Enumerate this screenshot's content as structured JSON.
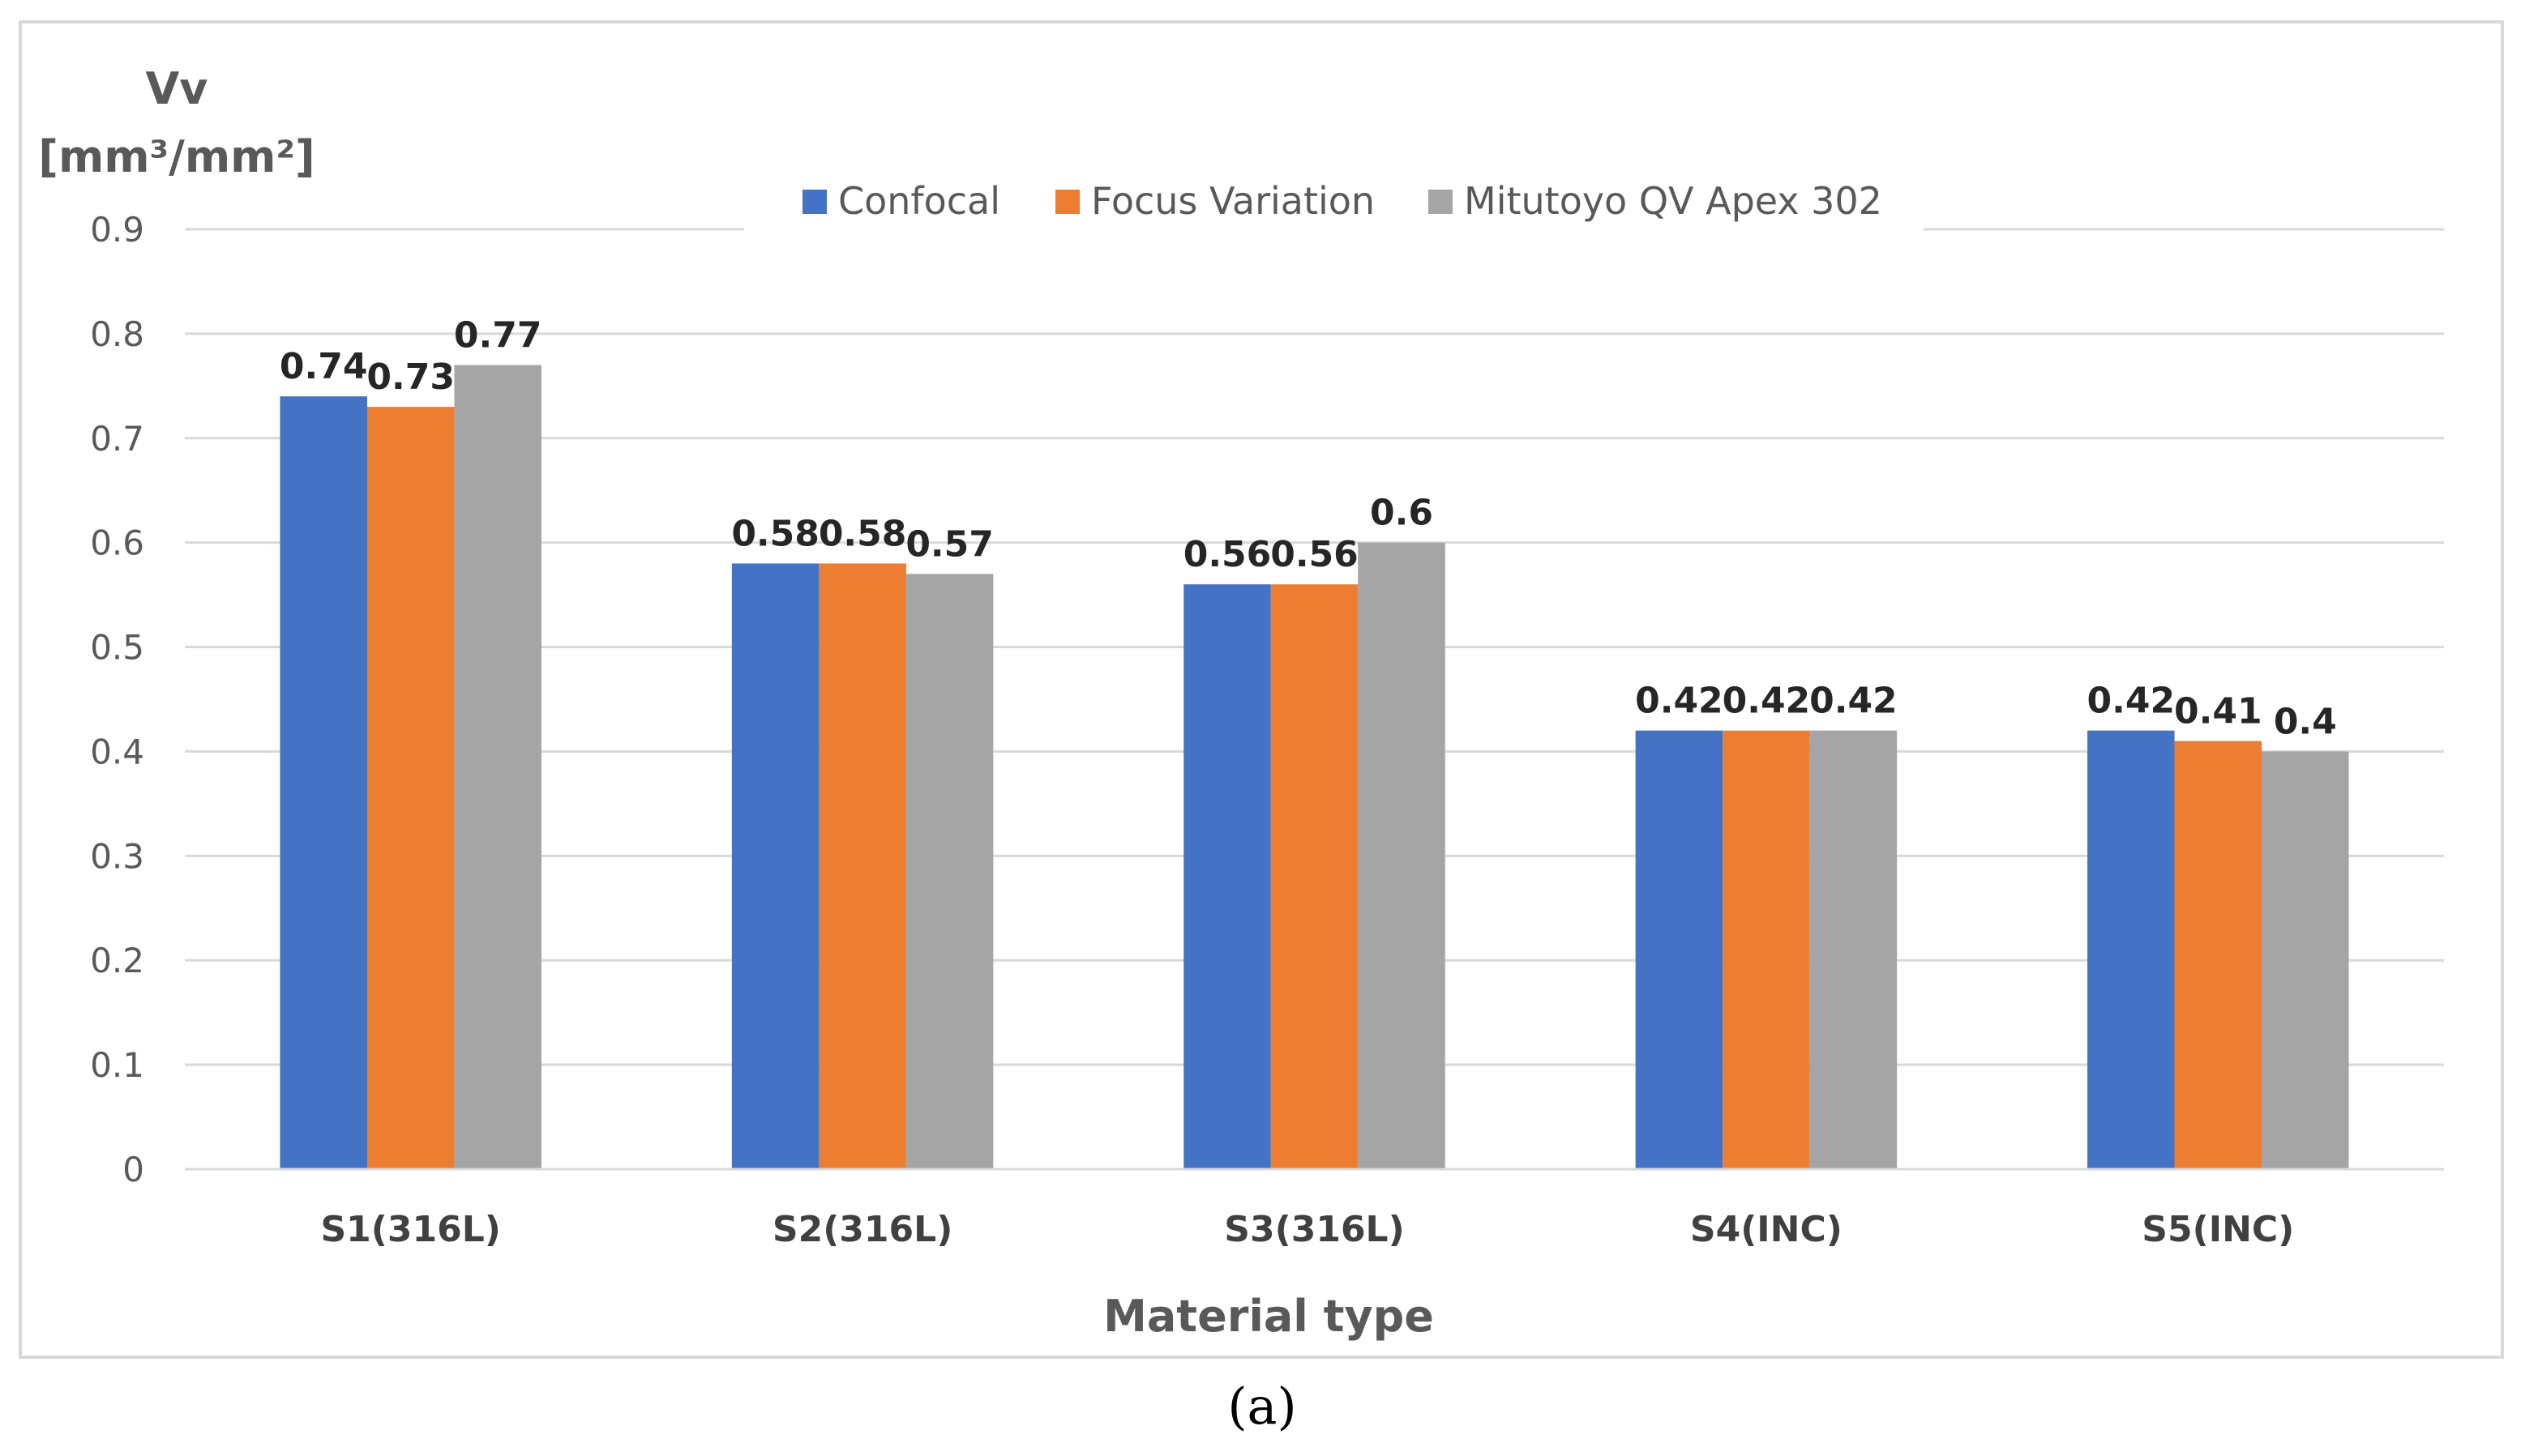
{
  "chart_data": {
    "type": "bar",
    "categories": [
      "S1(316L)",
      "S2(316L)",
      "S3(316L)",
      "S4(INC)",
      "S5(INC)"
    ],
    "series": [
      {
        "name": "Confocal",
        "color": "#4472C4",
        "values": [
          0.74,
          0.58,
          0.56,
          0.42,
          0.42
        ]
      },
      {
        "name": "Focus Variation",
        "color": "#ED7D31",
        "values": [
          0.73,
          0.58,
          0.56,
          0.42,
          0.41
        ]
      },
      {
        "name": "Mitutoyo QV Apex 302",
        "color": "#A5A5A5",
        "values": [
          0.77,
          0.57,
          0.6,
          0.42,
          0.4
        ]
      }
    ],
    "data_labels": [
      [
        "0.74",
        "0.58",
        "0.56",
        "0.42",
        "0.42"
      ],
      [
        "0.73",
        "0.58",
        "0.56",
        "0.42",
        "0.41"
      ],
      [
        "0.77",
        "0.57",
        "0.6",
        "0.42",
        "0.4"
      ]
    ],
    "yticks": [
      "0",
      "0.1",
      "0.2",
      "0.3",
      "0.4",
      "0.5",
      "0.6",
      "0.7",
      "0.8",
      "0.9"
    ],
    "ylim": [
      0,
      0.9
    ],
    "ylabel_line1": "Vv",
    "ylabel_line2": "[mm³/mm²]",
    "xlabel": "Material type",
    "grid": true,
    "legend_position": "top",
    "caption": "(a)"
  }
}
